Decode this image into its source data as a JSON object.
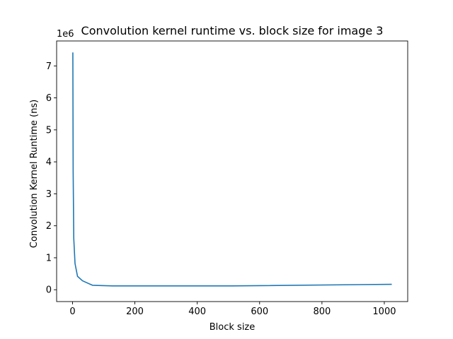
{
  "chart_data": {
    "type": "line",
    "title": "Convolution kernel runtime vs. block size for image 3",
    "xlabel": "Block size",
    "ylabel": "Convolution Kernel Runtime (ns)",
    "y_offset_label": "1e6",
    "xlim": [
      -51,
      1075
    ],
    "ylim": [
      -370000,
      7780000
    ],
    "x_ticks": [
      0,
      200,
      400,
      600,
      800,
      1000
    ],
    "y_ticks": [
      0,
      1000000,
      2000000,
      3000000,
      4000000,
      5000000,
      6000000,
      7000000
    ],
    "y_tick_labels": [
      "0",
      "1",
      "2",
      "3",
      "4",
      "5",
      "6",
      "7"
    ],
    "grid": false,
    "line_color": "#1f77b4",
    "series": [
      {
        "x": [
          1,
          2,
          4,
          8,
          16,
          32,
          64,
          128,
          256,
          512,
          1024
        ],
        "values": [
          7420000,
          3700000,
          1600000,
          820000,
          420000,
          280000,
          140000,
          120000,
          120000,
          120000,
          170000
        ]
      }
    ]
  }
}
